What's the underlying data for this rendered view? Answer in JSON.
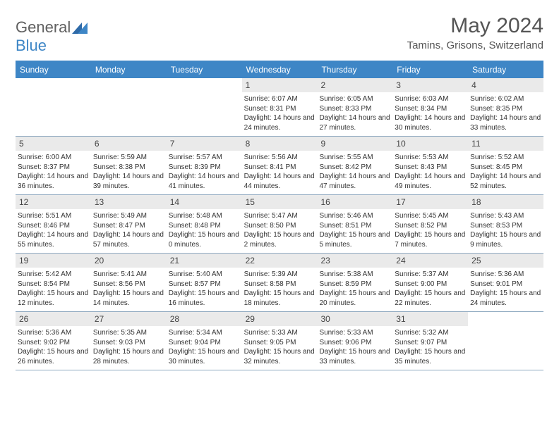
{
  "logo": {
    "text_gray": "General",
    "text_blue": "Blue"
  },
  "title": "May 2024",
  "location": "Tamins, Grisons, Switzerland",
  "colors": {
    "header_bg": "#3e86c6",
    "daynum_bg": "#eaeaea",
    "row_border": "#8fa9c0",
    "text": "#333333",
    "logo_gray": "#606060"
  },
  "day_headers": [
    "Sunday",
    "Monday",
    "Tuesday",
    "Wednesday",
    "Thursday",
    "Friday",
    "Saturday"
  ],
  "weeks": [
    [
      {
        "empty": true
      },
      {
        "empty": true
      },
      {
        "empty": true
      },
      {
        "num": "1",
        "sunrise": "6:07 AM",
        "sunset": "8:31 PM",
        "daylight": "14 hours and 24 minutes."
      },
      {
        "num": "2",
        "sunrise": "6:05 AM",
        "sunset": "8:33 PM",
        "daylight": "14 hours and 27 minutes."
      },
      {
        "num": "3",
        "sunrise": "6:03 AM",
        "sunset": "8:34 PM",
        "daylight": "14 hours and 30 minutes."
      },
      {
        "num": "4",
        "sunrise": "6:02 AM",
        "sunset": "8:35 PM",
        "daylight": "14 hours and 33 minutes."
      }
    ],
    [
      {
        "num": "5",
        "sunrise": "6:00 AM",
        "sunset": "8:37 PM",
        "daylight": "14 hours and 36 minutes."
      },
      {
        "num": "6",
        "sunrise": "5:59 AM",
        "sunset": "8:38 PM",
        "daylight": "14 hours and 39 minutes."
      },
      {
        "num": "7",
        "sunrise": "5:57 AM",
        "sunset": "8:39 PM",
        "daylight": "14 hours and 41 minutes."
      },
      {
        "num": "8",
        "sunrise": "5:56 AM",
        "sunset": "8:41 PM",
        "daylight": "14 hours and 44 minutes."
      },
      {
        "num": "9",
        "sunrise": "5:55 AM",
        "sunset": "8:42 PM",
        "daylight": "14 hours and 47 minutes."
      },
      {
        "num": "10",
        "sunrise": "5:53 AM",
        "sunset": "8:43 PM",
        "daylight": "14 hours and 49 minutes."
      },
      {
        "num": "11",
        "sunrise": "5:52 AM",
        "sunset": "8:45 PM",
        "daylight": "14 hours and 52 minutes."
      }
    ],
    [
      {
        "num": "12",
        "sunrise": "5:51 AM",
        "sunset": "8:46 PM",
        "daylight": "14 hours and 55 minutes."
      },
      {
        "num": "13",
        "sunrise": "5:49 AM",
        "sunset": "8:47 PM",
        "daylight": "14 hours and 57 minutes."
      },
      {
        "num": "14",
        "sunrise": "5:48 AM",
        "sunset": "8:48 PM",
        "daylight": "15 hours and 0 minutes."
      },
      {
        "num": "15",
        "sunrise": "5:47 AM",
        "sunset": "8:50 PM",
        "daylight": "15 hours and 2 minutes."
      },
      {
        "num": "16",
        "sunrise": "5:46 AM",
        "sunset": "8:51 PM",
        "daylight": "15 hours and 5 minutes."
      },
      {
        "num": "17",
        "sunrise": "5:45 AM",
        "sunset": "8:52 PM",
        "daylight": "15 hours and 7 minutes."
      },
      {
        "num": "18",
        "sunrise": "5:43 AM",
        "sunset": "8:53 PM",
        "daylight": "15 hours and 9 minutes."
      }
    ],
    [
      {
        "num": "19",
        "sunrise": "5:42 AM",
        "sunset": "8:54 PM",
        "daylight": "15 hours and 12 minutes."
      },
      {
        "num": "20",
        "sunrise": "5:41 AM",
        "sunset": "8:56 PM",
        "daylight": "15 hours and 14 minutes."
      },
      {
        "num": "21",
        "sunrise": "5:40 AM",
        "sunset": "8:57 PM",
        "daylight": "15 hours and 16 minutes."
      },
      {
        "num": "22",
        "sunrise": "5:39 AM",
        "sunset": "8:58 PM",
        "daylight": "15 hours and 18 minutes."
      },
      {
        "num": "23",
        "sunrise": "5:38 AM",
        "sunset": "8:59 PM",
        "daylight": "15 hours and 20 minutes."
      },
      {
        "num": "24",
        "sunrise": "5:37 AM",
        "sunset": "9:00 PM",
        "daylight": "15 hours and 22 minutes."
      },
      {
        "num": "25",
        "sunrise": "5:36 AM",
        "sunset": "9:01 PM",
        "daylight": "15 hours and 24 minutes."
      }
    ],
    [
      {
        "num": "26",
        "sunrise": "5:36 AM",
        "sunset": "9:02 PM",
        "daylight": "15 hours and 26 minutes."
      },
      {
        "num": "27",
        "sunrise": "5:35 AM",
        "sunset": "9:03 PM",
        "daylight": "15 hours and 28 minutes."
      },
      {
        "num": "28",
        "sunrise": "5:34 AM",
        "sunset": "9:04 PM",
        "daylight": "15 hours and 30 minutes."
      },
      {
        "num": "29",
        "sunrise": "5:33 AM",
        "sunset": "9:05 PM",
        "daylight": "15 hours and 32 minutes."
      },
      {
        "num": "30",
        "sunrise": "5:33 AM",
        "sunset": "9:06 PM",
        "daylight": "15 hours and 33 minutes."
      },
      {
        "num": "31",
        "sunrise": "5:32 AM",
        "sunset": "9:07 PM",
        "daylight": "15 hours and 35 minutes."
      },
      {
        "empty": true
      }
    ]
  ]
}
